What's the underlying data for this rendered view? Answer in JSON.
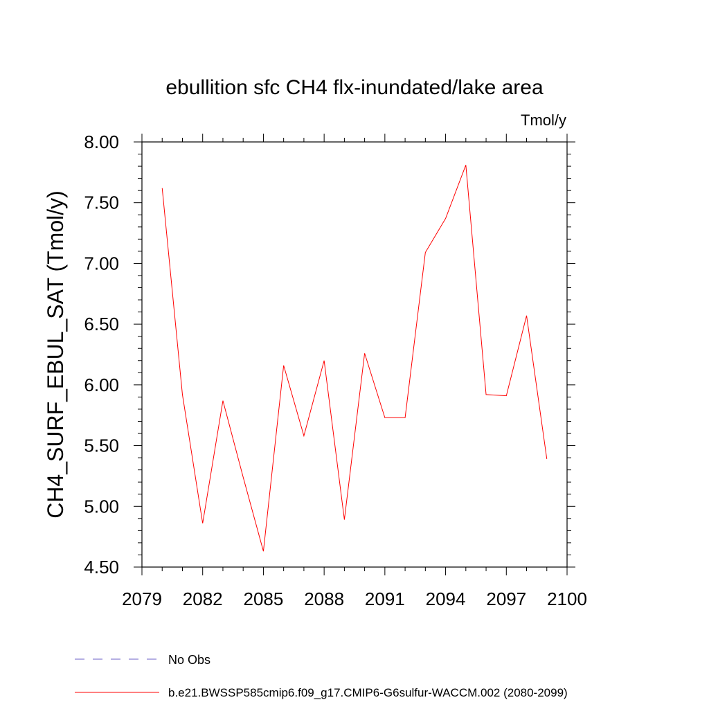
{
  "chart_data": {
    "type": "line",
    "title": "ebullition sfc CH4 flx-inundated/lake area",
    "units_label": "Tmol/y",
    "ylabel": "CH4_SURF_EBUL_SAT  (Tmol/y)",
    "xlabel": "",
    "xlim": [
      2079,
      2100
    ],
    "ylim": [
      4.5,
      8.0
    ],
    "x_ticks": [
      2079,
      2082,
      2085,
      2088,
      2091,
      2094,
      2097,
      2100
    ],
    "x_tick_labels": [
      "2079",
      "2082",
      "2085",
      "2088",
      "2091",
      "2094",
      "2097",
      "2100"
    ],
    "y_ticks": [
      4.5,
      5.0,
      5.5,
      6.0,
      6.5,
      7.0,
      7.5,
      8.0
    ],
    "y_tick_labels": [
      "4.50",
      "5.00",
      "5.50",
      "6.00",
      "6.50",
      "7.00",
      "7.50",
      "8.00"
    ],
    "grid": false,
    "legend_position": "bottom-left",
    "series": [
      {
        "name": "b.e21.BWSSP585cmip6.f09_g17.CMIP6-G6sulfur-WACCM.002 (2080-2099)",
        "color": "#ff0000",
        "style": "solid",
        "x": [
          2080,
          2081,
          2082,
          2083,
          2084,
          2085,
          2086,
          2087,
          2088,
          2089,
          2090,
          2091,
          2092,
          2093,
          2094,
          2095,
          2096,
          2097,
          2098,
          2099
        ],
        "values": [
          7.62,
          5.92,
          4.86,
          5.87,
          5.24,
          4.63,
          6.16,
          5.58,
          6.2,
          4.89,
          6.26,
          5.73,
          5.73,
          7.09,
          7.37,
          7.81,
          5.92,
          5.91,
          6.57,
          5.39
        ]
      }
    ],
    "legend": [
      {
        "label": "No Obs",
        "color": "#6b5fc7",
        "style": "dashed"
      },
      {
        "label": "b.e21.BWSSP585cmip6.f09_g17.CMIP6-G6sulfur-WACCM.002 (2080-2099)",
        "color": "#ff0000",
        "style": "solid"
      }
    ]
  }
}
